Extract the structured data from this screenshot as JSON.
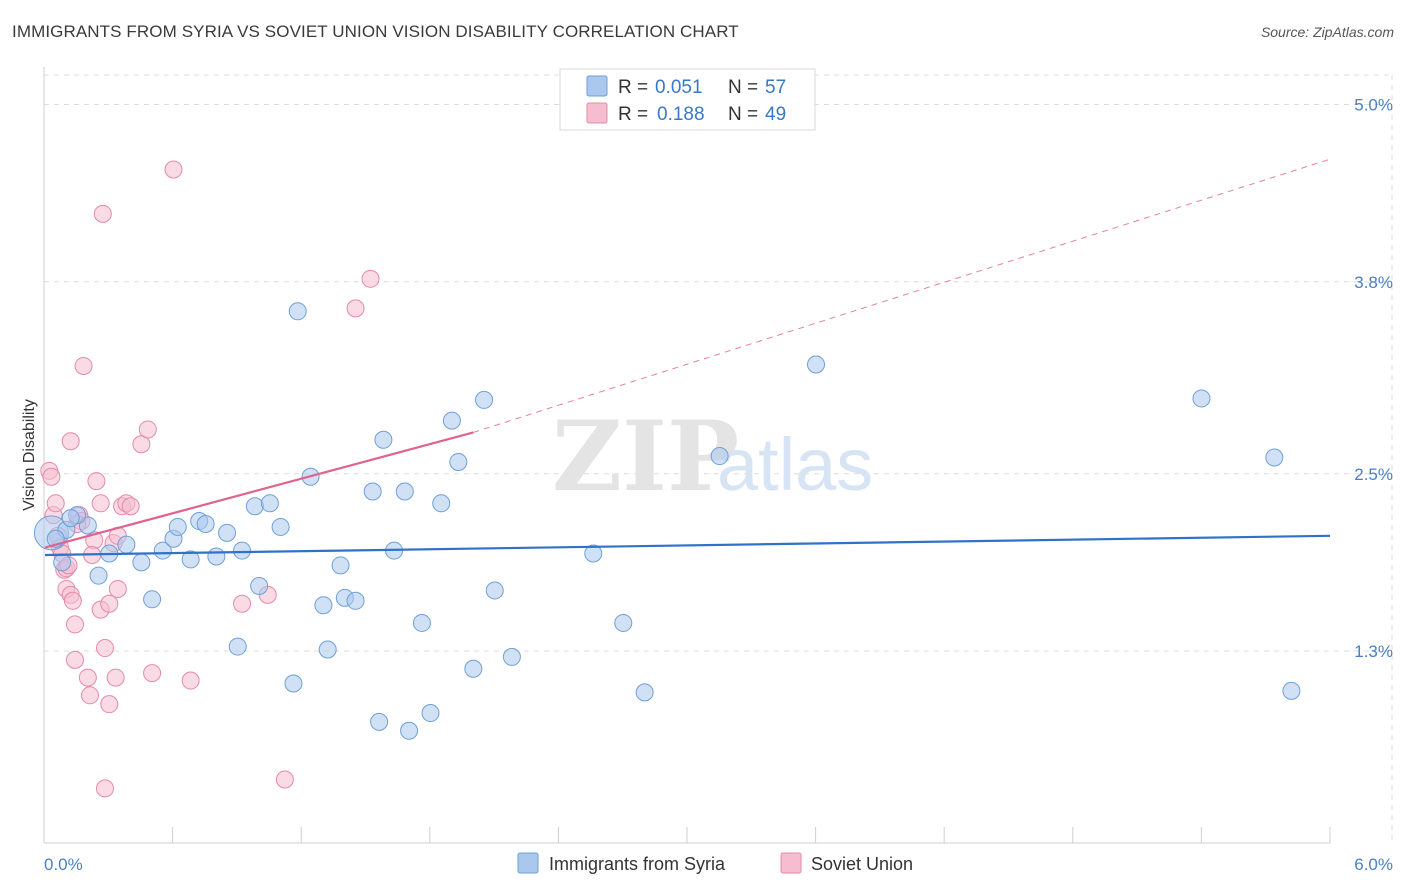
{
  "header": {
    "title": "IMMIGRANTS FROM SYRIA VS SOVIET UNION VISION DISABILITY CORRELATION CHART",
    "source": "Source: ZipAtlas.com"
  },
  "watermark": {
    "zip": "ZIP",
    "atlas": "atlas"
  },
  "colors": {
    "syria_fill": "#aac8ee",
    "syria_stroke": "#6f9fd8",
    "syria_line": "#2f72c8",
    "soviet_fill": "#f6bdd0",
    "soviet_stroke": "#e48aaa",
    "soviet_line": "#e0628f",
    "grid": "#dddddd",
    "axis_text": "#4a7fc4"
  },
  "legend": {
    "series": [
      {
        "r_label": "R =",
        "r_value": "0.051",
        "n_label": "N =",
        "n_value": "57"
      },
      {
        "r_label": "R =",
        "r_value": "0.188",
        "n_label": "N =",
        "n_value": "49"
      }
    ]
  },
  "chart_data": {
    "type": "scatter",
    "title": "IMMIGRANTS FROM SYRIA VS SOVIET UNION VISION DISABILITY CORRELATION CHART",
    "xlabel": "",
    "ylabel": "Vision Disability",
    "xlim": [
      0,
      6
    ],
    "ylim": [
      0,
      5.2
    ],
    "x_tick_labels": [
      "0.0%",
      "6.0%"
    ],
    "y_ticks": [
      1.3,
      2.5,
      3.8,
      5.0
    ],
    "y_tick_labels": [
      "1.3%",
      "2.5%",
      "3.8%",
      "5.0%"
    ],
    "grid": true,
    "series": [
      {
        "name": "Immigrants from Syria",
        "color": "#aac8ee",
        "trend": {
          "x": [
            0,
            6
          ],
          "y": [
            1.95,
            2.08
          ],
          "style": "solid"
        },
        "points": [
          {
            "x": 0.03,
            "y": 2.1,
            "big": true
          },
          {
            "x": 0.1,
            "y": 2.12
          },
          {
            "x": 0.2,
            "y": 2.15
          },
          {
            "x": 0.15,
            "y": 2.22
          },
          {
            "x": 0.08,
            "y": 1.9
          },
          {
            "x": 0.3,
            "y": 1.96
          },
          {
            "x": 0.38,
            "y": 2.02
          },
          {
            "x": 0.45,
            "y": 1.9
          },
          {
            "x": 0.25,
            "y": 1.81
          },
          {
            "x": 0.5,
            "y": 1.65
          },
          {
            "x": 0.55,
            "y": 1.98
          },
          {
            "x": 0.6,
            "y": 2.06
          },
          {
            "x": 0.62,
            "y": 2.14
          },
          {
            "x": 0.68,
            "y": 1.92
          },
          {
            "x": 0.72,
            "y": 2.18
          },
          {
            "x": 0.75,
            "y": 2.16
          },
          {
            "x": 0.8,
            "y": 1.94
          },
          {
            "x": 0.85,
            "y": 2.1
          },
          {
            "x": 0.9,
            "y": 1.33
          },
          {
            "x": 0.92,
            "y": 1.98
          },
          {
            "x": 0.98,
            "y": 2.28
          },
          {
            "x": 1.0,
            "y": 1.74
          },
          {
            "x": 1.05,
            "y": 2.3
          },
          {
            "x": 1.1,
            "y": 2.14
          },
          {
            "x": 1.16,
            "y": 1.08
          },
          {
            "x": 1.18,
            "y": 3.6
          },
          {
            "x": 1.24,
            "y": 2.48
          },
          {
            "x": 1.3,
            "y": 1.61
          },
          {
            "x": 1.32,
            "y": 1.31
          },
          {
            "x": 1.38,
            "y": 1.88
          },
          {
            "x": 1.4,
            "y": 1.66
          },
          {
            "x": 1.45,
            "y": 1.64
          },
          {
            "x": 1.53,
            "y": 2.38
          },
          {
            "x": 1.56,
            "y": 0.82
          },
          {
            "x": 1.58,
            "y": 2.73
          },
          {
            "x": 1.63,
            "y": 1.98
          },
          {
            "x": 1.68,
            "y": 2.38
          },
          {
            "x": 1.7,
            "y": 0.76
          },
          {
            "x": 1.76,
            "y": 1.49
          },
          {
            "x": 1.8,
            "y": 0.88
          },
          {
            "x": 1.85,
            "y": 2.3
          },
          {
            "x": 1.9,
            "y": 2.86
          },
          {
            "x": 1.93,
            "y": 2.58
          },
          {
            "x": 2.0,
            "y": 1.18
          },
          {
            "x": 2.05,
            "y": 3.0
          },
          {
            "x": 2.1,
            "y": 1.71
          },
          {
            "x": 2.18,
            "y": 1.26
          },
          {
            "x": 2.56,
            "y": 1.96
          },
          {
            "x": 2.7,
            "y": 1.49
          },
          {
            "x": 2.8,
            "y": 1.02
          },
          {
            "x": 3.15,
            "y": 2.62
          },
          {
            "x": 3.6,
            "y": 3.24
          },
          {
            "x": 5.4,
            "y": 3.01
          },
          {
            "x": 5.74,
            "y": 2.61
          },
          {
            "x": 5.82,
            "y": 1.03
          },
          {
            "x": 0.12,
            "y": 2.2
          },
          {
            "x": 0.05,
            "y": 2.06
          }
        ]
      },
      {
        "name": "Soviet Union",
        "color": "#f6bdd0",
        "trend": {
          "x": [
            0,
            2.0
          ],
          "y": [
            2.0,
            2.78
          ],
          "style": "solid",
          "extended": {
            "x": [
              2.0,
              6.0
            ],
            "y": [
              2.78,
              4.63
            ]
          },
          "extended_style": "dashed"
        },
        "points": [
          {
            "x": 0.02,
            "y": 2.52
          },
          {
            "x": 0.03,
            "y": 2.48
          },
          {
            "x": 0.04,
            "y": 2.22
          },
          {
            "x": 0.06,
            "y": 2.08
          },
          {
            "x": 0.07,
            "y": 2.0
          },
          {
            "x": 0.08,
            "y": 1.96
          },
          {
            "x": 0.09,
            "y": 1.85
          },
          {
            "x": 0.1,
            "y": 1.86
          },
          {
            "x": 0.1,
            "y": 1.72
          },
          {
            "x": 0.12,
            "y": 1.68
          },
          {
            "x": 0.13,
            "y": 1.64
          },
          {
            "x": 0.14,
            "y": 1.48
          },
          {
            "x": 0.14,
            "y": 1.24
          },
          {
            "x": 0.12,
            "y": 2.72
          },
          {
            "x": 0.16,
            "y": 2.22
          },
          {
            "x": 0.17,
            "y": 2.18
          },
          {
            "x": 0.18,
            "y": 3.23
          },
          {
            "x": 0.2,
            "y": 1.12
          },
          {
            "x": 0.21,
            "y": 1.0
          },
          {
            "x": 0.23,
            "y": 2.05
          },
          {
            "x": 0.24,
            "y": 2.45
          },
          {
            "x": 0.26,
            "y": 2.3
          },
          {
            "x": 0.26,
            "y": 1.58
          },
          {
            "x": 0.28,
            "y": 1.32
          },
          {
            "x": 0.28,
            "y": 0.37
          },
          {
            "x": 0.3,
            "y": 1.62
          },
          {
            "x": 0.3,
            "y": 0.94
          },
          {
            "x": 0.32,
            "y": 2.03
          },
          {
            "x": 0.33,
            "y": 1.12
          },
          {
            "x": 0.34,
            "y": 2.08
          },
          {
            "x": 0.34,
            "y": 1.72
          },
          {
            "x": 0.36,
            "y": 2.28
          },
          {
            "x": 0.38,
            "y": 2.3
          },
          {
            "x": 0.4,
            "y": 2.28
          },
          {
            "x": 0.45,
            "y": 2.7
          },
          {
            "x": 0.48,
            "y": 2.8
          },
          {
            "x": 0.5,
            "y": 1.15
          },
          {
            "x": 0.6,
            "y": 4.56
          },
          {
            "x": 0.68,
            "y": 1.1
          },
          {
            "x": 0.92,
            "y": 1.62
          },
          {
            "x": 1.04,
            "y": 1.68
          },
          {
            "x": 1.12,
            "y": 0.43
          },
          {
            "x": 1.45,
            "y": 3.62
          },
          {
            "x": 1.52,
            "y": 3.82
          },
          {
            "x": 0.27,
            "y": 4.26
          },
          {
            "x": 0.05,
            "y": 2.3
          },
          {
            "x": 0.11,
            "y": 1.88
          },
          {
            "x": 0.15,
            "y": 2.16
          },
          {
            "x": 0.22,
            "y": 1.95
          }
        ]
      }
    ]
  }
}
